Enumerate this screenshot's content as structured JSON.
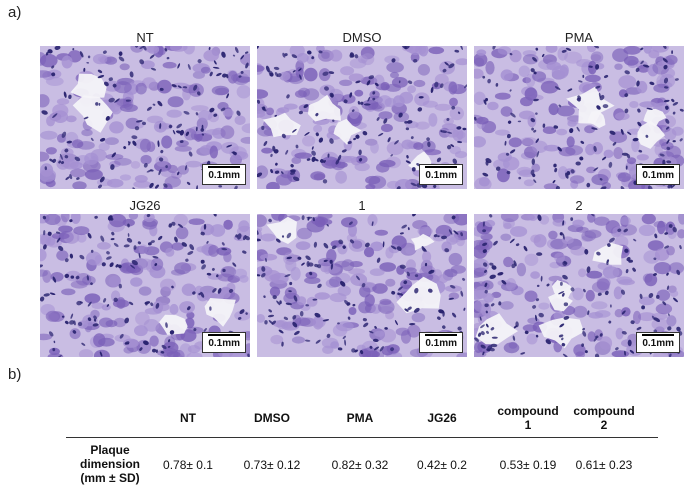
{
  "panel_a_label": "a)",
  "panel_b_label": "b)",
  "images": [
    {
      "title": "NT",
      "scale": "0.1mm"
    },
    {
      "title": "DMSO",
      "scale": "0.1mm"
    },
    {
      "title": "PMA",
      "scale": "0.1mm"
    },
    {
      "title": "JG26",
      "scale": "0.1mm"
    },
    {
      "title": "1",
      "scale": "0.1mm"
    },
    {
      "title": "2",
      "scale": "0.1mm"
    }
  ],
  "table": {
    "headers": [
      "NT",
      "DMSO",
      "PMA",
      "JG26",
      "compound\n1",
      "compound\n2"
    ],
    "row_label": "Plaque\ndimension\n(mm ± SD)",
    "values": [
      "0.78± 0.1",
      "0.73± 0.12",
      "0.82± 0.32",
      "0.42± 0.2",
      "0.53± 0.19",
      "0.61± 0.23"
    ]
  },
  "colors": {
    "stain_dark": "#2a2470",
    "stain_mid": "#7a5fb8",
    "stain_light": "#c9bde3",
    "background_white": "#f4f3f8"
  }
}
